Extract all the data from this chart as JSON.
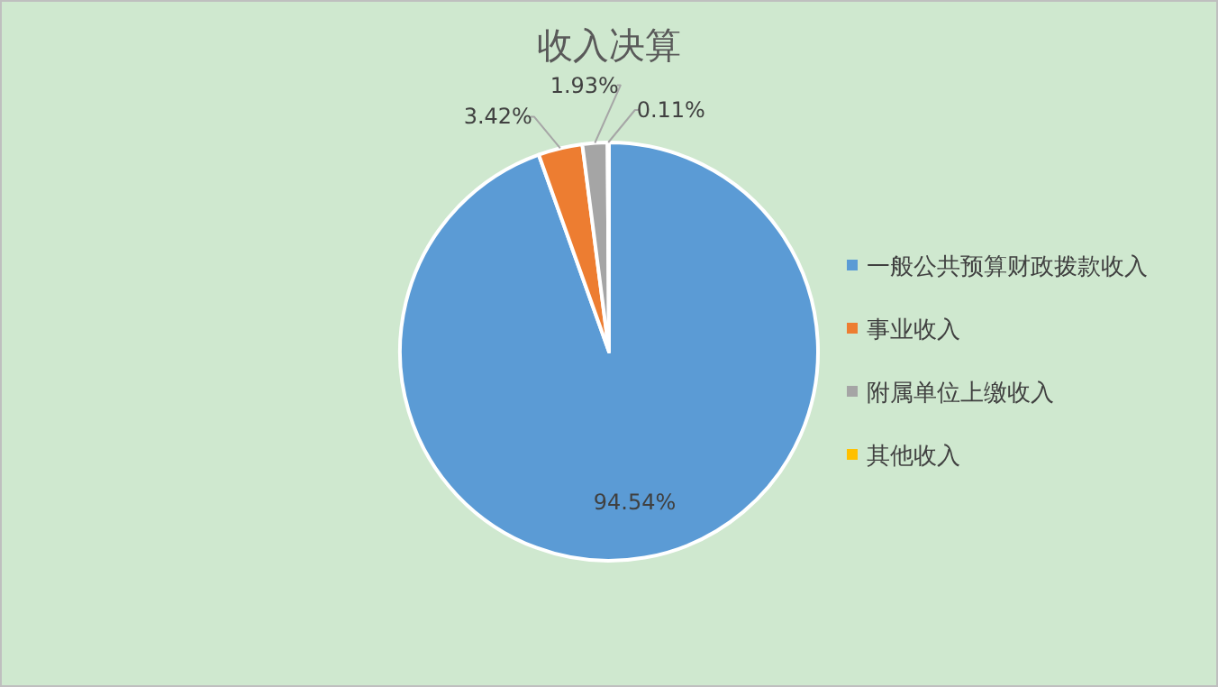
{
  "chart_data": {
    "type": "pie",
    "title": "收入决算",
    "categories": [
      "一般公共预算财政拨款收入",
      "事业收入",
      "附属单位上缴收入",
      "其他收入"
    ],
    "values": [
      94.54,
      3.42,
      1.93,
      0.11
    ],
    "colors": [
      "#5b9bd5",
      "#ed7d31",
      "#a5a5a5",
      "#ffc000"
    ],
    "value_labels": [
      "94.54%",
      "3.42%",
      "1.93%",
      "0.11%"
    ],
    "legend": "right"
  }
}
